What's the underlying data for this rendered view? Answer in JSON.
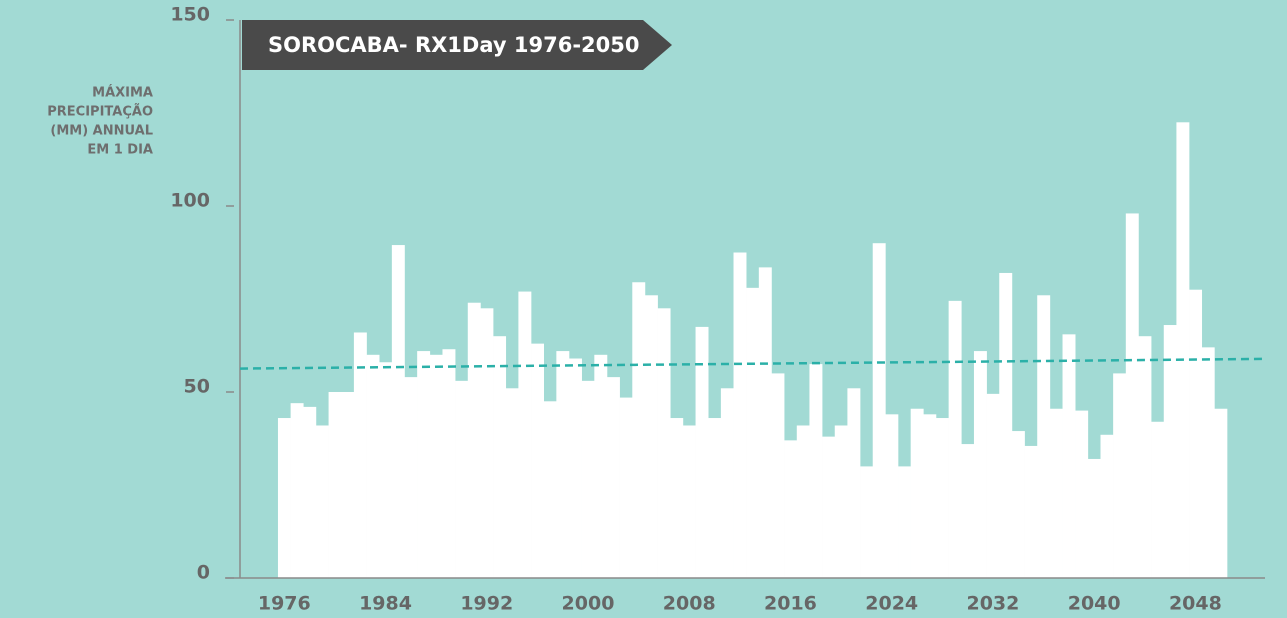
{
  "chart_data": {
    "type": "bar",
    "title": "SOROCABA- RX1Day  1976-2050",
    "ylabel": [
      "MÁXIMA",
      "PRECIPITAÇÃO",
      "(MM) ANNUAL",
      "EM 1 DIA"
    ],
    "x": [
      1976,
      1977,
      1978,
      1979,
      1980,
      1981,
      1982,
      1983,
      1984,
      1985,
      1986,
      1987,
      1988,
      1989,
      1990,
      1991,
      1992,
      1993,
      1994,
      1995,
      1996,
      1997,
      1998,
      1999,
      2000,
      2001,
      2002,
      2003,
      2004,
      2005,
      2006,
      2007,
      2008,
      2009,
      2010,
      2011,
      2012,
      2013,
      2014,
      2015,
      2016,
      2017,
      2018,
      2019,
      2020,
      2021,
      2022,
      2023,
      2024,
      2025,
      2026,
      2027,
      2028,
      2029,
      2030,
      2031,
      2032,
      2033,
      2034,
      2035,
      2036,
      2037,
      2038,
      2039,
      2040,
      2041,
      2042,
      2043,
      2044,
      2045,
      2046,
      2047,
      2048,
      2049,
      2050
    ],
    "values": [
      43,
      47,
      46,
      41,
      50,
      50,
      66,
      60,
      58,
      89.5,
      54,
      61,
      60,
      61.5,
      53,
      74,
      72.5,
      65,
      51,
      77,
      63,
      47.5,
      61,
      59,
      53,
      60,
      54,
      48.5,
      79.5,
      76,
      72.5,
      43,
      41,
      67.5,
      43,
      51,
      87.5,
      78,
      83.5,
      55,
      37,
      41,
      57.5,
      38,
      41,
      51,
      30,
      90,
      44,
      30,
      45.5,
      44,
      43,
      74.5,
      36,
      61,
      49.5,
      82,
      39.5,
      35.5,
      76,
      45.5,
      65.5,
      45,
      32,
      38.5,
      55,
      98,
      65,
      42,
      68,
      122.5,
      77.5,
      62,
      45.5
    ],
    "color": "#ffffff",
    "trend": {
      "x": [
        1972.5,
        2053.5
      ],
      "values": [
        56.3,
        58.9
      ],
      "color": "#2bb0a8"
    },
    "xlim": [
      1972.5,
      2053.5
    ],
    "xticks": [
      1976,
      1984,
      1992,
      2000,
      2008,
      2016,
      2024,
      2032,
      2040,
      2048
    ],
    "ylim": [
      0,
      150
    ],
    "yticks": [
      0,
      50,
      100,
      150
    ]
  }
}
